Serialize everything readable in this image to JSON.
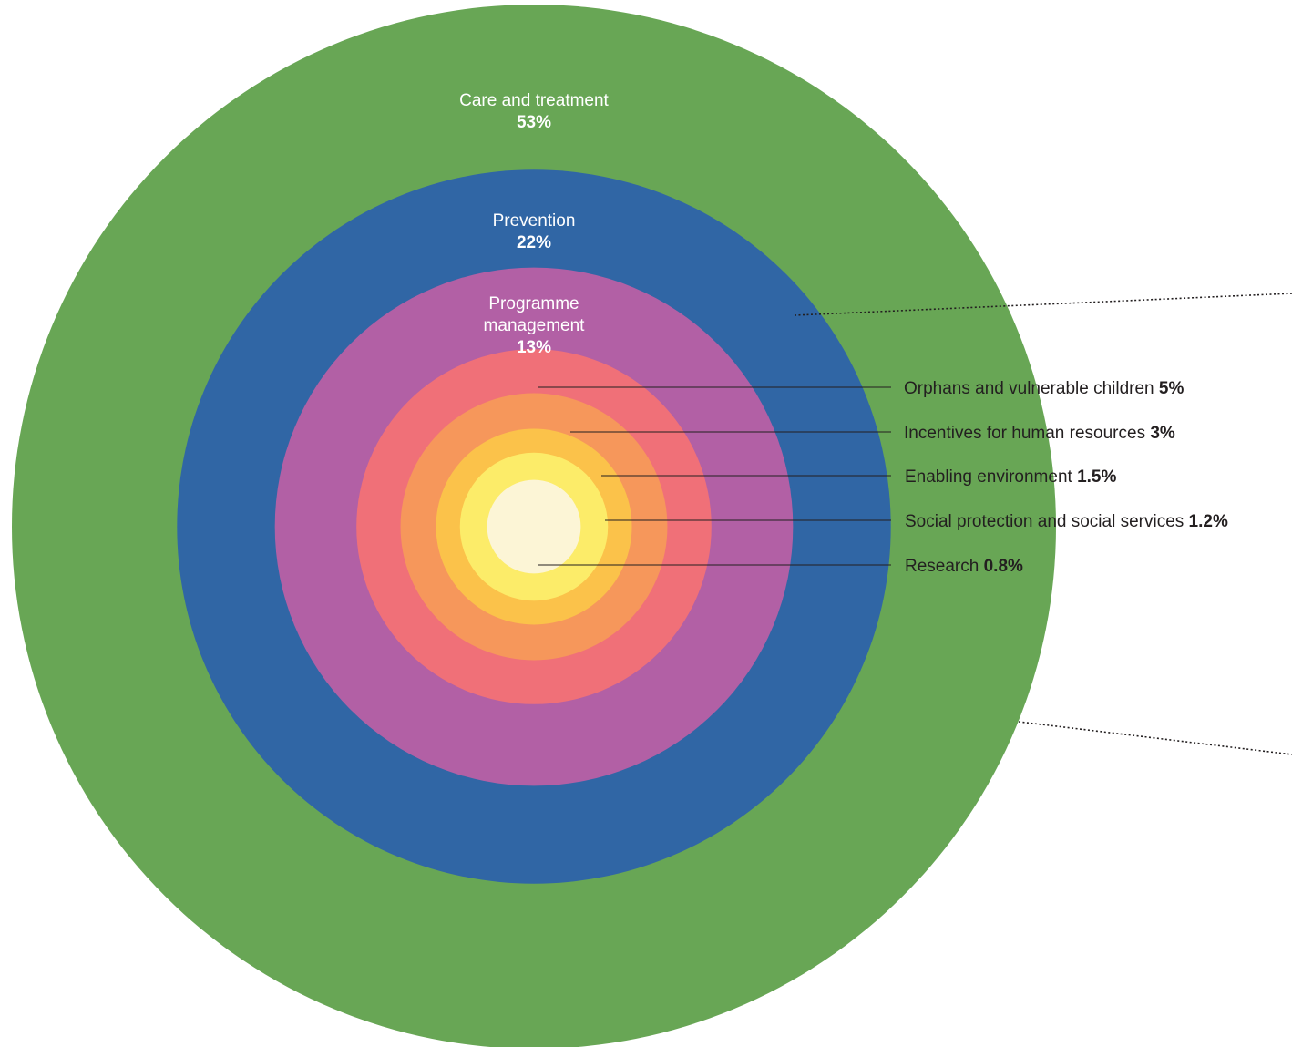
{
  "chart_data": {
    "type": "pie",
    "series": [
      {
        "name": "",
        "categories": [
          "Care and treatment",
          "Prevention",
          "Programme management",
          "Orphans and vulnerable children",
          "Incentives for human resources",
          "Enabling environment",
          "Social protection and social services",
          "Research"
        ],
        "values": [
          53,
          22,
          13,
          5,
          3,
          1.5,
          1.2,
          0.8
        ],
        "labels": [
          "53%",
          "22%",
          "13%",
          "5%",
          "3%",
          "1.5%",
          "1.2%",
          "0.8%"
        ],
        "label_lines": [
          [
            "Care and treatment"
          ],
          [
            "Prevention"
          ],
          [
            "Programme",
            "management"
          ],
          [
            "Orphans and vulnerable children"
          ],
          [
            "Incentives for human resources"
          ],
          [
            "Enabling environment"
          ],
          [
            "Social protection and social services"
          ],
          [
            "Research"
          ]
        ],
        "colors": [
          "#68a655",
          "#3066a5",
          "#b260a5",
          "#f07078",
          "#f6975b",
          "#fbc24a",
          "#fcec69",
          "#fcf5d6"
        ]
      }
    ],
    "title": "",
    "legend": "none"
  }
}
